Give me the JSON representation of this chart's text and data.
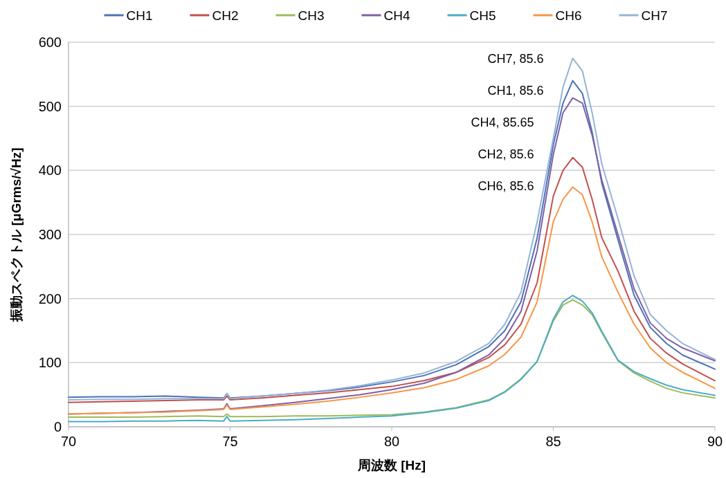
{
  "chart_data": {
    "type": "line",
    "xlabel": "周波数 [Hz]",
    "ylabel": "振動スペクトル [μGrms/√Hz]",
    "x": [
      70,
      71,
      72,
      73,
      74,
      74.8,
      74.9,
      75,
      76,
      77,
      78,
      79,
      80,
      81,
      82,
      83,
      83.5,
      84,
      84.5,
      85,
      85.3,
      85.6,
      85.9,
      86.2,
      86.5,
      87,
      87.5,
      88,
      88.5,
      89,
      90
    ],
    "xlim": [
      70,
      90
    ],
    "xticks": [
      70,
      75,
      80,
      85,
      90
    ],
    "ylim": [
      0,
      600
    ],
    "yticks": [
      0,
      100,
      200,
      300,
      400,
      500,
      600
    ],
    "grid": "y",
    "legend": "top",
    "marker": "none",
    "line_style": "solid",
    "series": [
      {
        "name": "CH1",
        "color": "#4a72b8",
        "values": [
          46,
          47,
          47,
          48,
          46,
          45,
          52,
          45,
          48,
          52,
          56,
          62,
          70,
          80,
          97,
          125,
          150,
          195,
          295,
          440,
          505,
          540,
          520,
          460,
          380,
          292,
          205,
          155,
          130,
          112,
          90
        ]
      },
      {
        "name": "CH2",
        "color": "#c0504d",
        "values": [
          38,
          39,
          40,
          41,
          42,
          42,
          48,
          42,
          45,
          49,
          53,
          58,
          63,
          72,
          85,
          108,
          128,
          160,
          225,
          360,
          400,
          420,
          405,
          355,
          295,
          243,
          180,
          138,
          115,
          98,
          72
        ]
      },
      {
        "name": "CH3",
        "color": "#9bbb59",
        "values": [
          15,
          15,
          15,
          16,
          17,
          16,
          20,
          16,
          16,
          17,
          17,
          18,
          19,
          23,
          30,
          42,
          55,
          75,
          102,
          165,
          190,
          198,
          190,
          175,
          147,
          103,
          84,
          71,
          60,
          53,
          45
        ]
      },
      {
        "name": "CH4",
        "color": "#7f5fa8",
        "values": [
          20,
          21,
          22,
          24,
          26,
          28,
          36,
          28,
          33,
          38,
          44,
          50,
          58,
          68,
          85,
          112,
          138,
          180,
          275,
          425,
          490,
          513,
          505,
          455,
          385,
          300,
          215,
          162,
          138,
          123,
          103
        ]
      },
      {
        "name": "CH5",
        "color": "#4bacc6",
        "values": [
          8,
          8,
          9,
          9,
          10,
          9,
          16,
          9,
          10,
          11,
          13,
          15,
          17,
          22,
          29,
          41,
          54,
          74,
          102,
          168,
          195,
          205,
          196,
          178,
          149,
          104,
          86,
          75,
          65,
          58,
          49
        ]
      },
      {
        "name": "CH6",
        "color": "#f79646",
        "values": [
          20,
          21,
          22,
          23,
          25,
          27,
          34,
          27,
          31,
          35,
          40,
          46,
          53,
          61,
          74,
          95,
          113,
          140,
          195,
          320,
          355,
          374,
          362,
          320,
          265,
          210,
          160,
          123,
          100,
          85,
          60
        ]
      },
      {
        "name": "CH7",
        "color": "#95b3d7",
        "values": [
          42,
          43,
          43,
          44,
          44,
          44,
          52,
          44,
          48,
          52,
          57,
          64,
          73,
          84,
          102,
          130,
          160,
          210,
          320,
          450,
          530,
          575,
          555,
          490,
          410,
          325,
          235,
          175,
          150,
          130,
          105
        ]
      }
    ],
    "annotations": [
      "CH7, 85.6",
      "CH1, 85.6",
      "CH4, 85.65",
      "CH2, 85.6",
      "CH6, 85.6"
    ]
  }
}
